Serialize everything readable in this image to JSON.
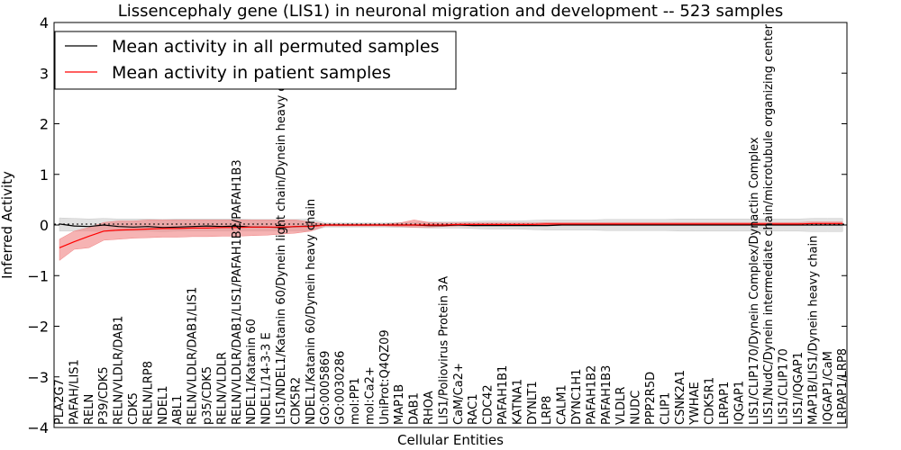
{
  "chart_data": {
    "type": "line",
    "title": "Lissencephaly gene (LIS1) in neuronal migration and development -- 523 samples",
    "xlabel": "Cellular Entities",
    "ylabel": "Inferred Activity",
    "ylim": [
      -4,
      4
    ],
    "yticks": [
      "4",
      "3",
      "2",
      "1",
      "0",
      "−1",
      "−2",
      "−3",
      "−4"
    ],
    "legend_position": "upper-left",
    "categories": [
      "PLA2G7",
      "PAFAH/LIS1",
      "RELN",
      "P39/CDK5",
      "RELN/VLDLR/DAB1",
      "CDK5",
      "RELN/LRP8",
      "NDEL1",
      "ABL1",
      "RELN/VLDLR/DAB1/LIS1",
      "p35/CDK5",
      "RELN/VLDLR",
      "RELN/VLDLR/DAB1/LIS1/PAFAH1B2/PAFAH1B3",
      "NDEL1/Katanin 60",
      "NDEL1/14-3-3 E",
      "LIS1/NDEL1/Katanin 60/Dynein light chain/Dynein heavy chain",
      "CDK5R2",
      "NDEL1/Katanin 60/Dynein heavy chain",
      "GO:0005869",
      "GO:0030286",
      "mol:PP1",
      "mol:Ca2+",
      "UniProt:Q4QZ09",
      "MAP1B",
      "DAB1",
      "RHOA",
      "LIS1/Poliovirus Protein 3A",
      "CaM/Ca2+",
      "RAC1",
      "CDC42",
      "PAFAH1B1",
      "KATNA1",
      "DYNLT1",
      "LRP8",
      "CALM1",
      "DYNC1H1",
      "PAFAH1B2",
      "PAFAH1B3",
      "VLDLR",
      "NUDC",
      "PPP2R5D",
      "CLIP1",
      "CSNK2A1",
      "YWHAE",
      "CDK5R1",
      "LRPAP1",
      "IQGAP1",
      "LIS1/CLIP170/Dynein Complex/Dynactin Complex",
      "LIS1/NudC/Dynein intermediate chain/microtubule organizing center",
      "LIS1/CLIP170",
      "LIS1/IQGAP1",
      "MAP1B/LIS1/Dynein heavy chain",
      "IQGAP1/CaM",
      "LRPAP1/LRP8"
    ],
    "series": [
      {
        "name": "Mean activity in all permuted samples",
        "color": "#000000",
        "band_color": "#c8c8c8",
        "values": [
          0.02,
          -0.02,
          -0.03,
          0.0,
          -0.03,
          -0.04,
          -0.03,
          -0.05,
          -0.04,
          -0.03,
          -0.02,
          -0.03,
          -0.02,
          -0.04,
          -0.04,
          -0.05,
          -0.03,
          -0.02,
          0.0,
          0.0,
          0.0,
          0.0,
          0.0,
          0.0,
          0.0,
          -0.01,
          -0.01,
          0.0,
          -0.01,
          -0.01,
          -0.01,
          -0.01,
          -0.01,
          -0.01,
          0.0,
          0.0,
          0.0,
          0.0,
          0.0,
          0.0,
          0.0,
          0.0,
          0.0,
          0.0,
          0.0,
          0.0,
          0.0,
          0.0,
          0.0,
          0.0,
          0.0,
          0.0,
          0.0,
          0.0
        ],
        "lower": [
          -0.12,
          -0.12,
          -0.12,
          -0.13,
          -0.12,
          -0.12,
          -0.12,
          -0.13,
          -0.12,
          -0.12,
          -0.12,
          -0.12,
          -0.12,
          -0.12,
          -0.12,
          -0.12,
          -0.12,
          -0.12,
          -0.04,
          -0.04,
          -0.04,
          -0.04,
          -0.04,
          -0.05,
          -0.05,
          -0.06,
          -0.06,
          -0.06,
          -0.07,
          -0.08,
          -0.08,
          -0.08,
          -0.09,
          -0.1,
          -0.1,
          -0.1,
          -0.1,
          -0.11,
          -0.11,
          -0.11,
          -0.11,
          -0.11,
          -0.12,
          -0.12,
          -0.12,
          -0.12,
          -0.12,
          -0.12,
          -0.12,
          -0.12,
          -0.12,
          -0.13,
          -0.13,
          -0.13
        ],
        "upper": [
          0.14,
          0.13,
          0.12,
          0.13,
          0.12,
          0.12,
          0.12,
          0.11,
          0.12,
          0.12,
          0.12,
          0.12,
          0.12,
          0.11,
          0.11,
          0.11,
          0.11,
          0.12,
          0.04,
          0.04,
          0.04,
          0.04,
          0.04,
          0.05,
          0.05,
          0.06,
          0.06,
          0.06,
          0.07,
          0.08,
          0.08,
          0.08,
          0.09,
          0.1,
          0.1,
          0.1,
          0.1,
          0.11,
          0.11,
          0.11,
          0.11,
          0.11,
          0.12,
          0.12,
          0.12,
          0.12,
          0.12,
          0.12,
          0.12,
          0.12,
          0.12,
          0.13,
          0.13,
          0.13
        ]
      },
      {
        "name": "Mean activity in patient samples",
        "color": "#ff0000",
        "band_color": "#f08080",
        "values": [
          -0.45,
          -0.33,
          -0.22,
          -0.12,
          -0.1,
          -0.09,
          -0.08,
          -0.07,
          -0.07,
          -0.06,
          -0.06,
          -0.05,
          -0.05,
          -0.04,
          -0.04,
          -0.04,
          -0.03,
          -0.03,
          0.0,
          0.0,
          0.0,
          0.0,
          0.0,
          0.0,
          0.0,
          0.0,
          0.0,
          0.01,
          0.01,
          0.01,
          0.01,
          0.01,
          0.01,
          0.02,
          0.02,
          0.02,
          0.02,
          0.02,
          0.02,
          0.02,
          0.02,
          0.02,
          0.02,
          0.02,
          0.02,
          0.02,
          0.02,
          0.02,
          0.02,
          0.02,
          0.02,
          0.03,
          0.03,
          0.03
        ],
        "lower": [
          -0.7,
          -0.48,
          -0.45,
          -0.3,
          -0.28,
          -0.26,
          -0.25,
          -0.24,
          -0.24,
          -0.23,
          -0.23,
          -0.22,
          -0.22,
          -0.21,
          -0.2,
          -0.18,
          -0.16,
          -0.12,
          -0.02,
          -0.02,
          -0.02,
          -0.02,
          -0.02,
          -0.03,
          -0.04,
          -0.04,
          -0.03,
          -0.02,
          -0.02,
          -0.01,
          -0.01,
          -0.01,
          -0.01,
          0.0,
          0.0,
          0.0,
          0.0,
          0.0,
          0.0,
          0.0,
          0.0,
          0.0,
          0.0,
          0.0,
          0.0,
          0.0,
          0.0,
          0.0,
          0.0,
          0.0,
          0.0,
          0.0,
          0.0,
          0.0
        ],
        "upper": [
          -0.28,
          -0.12,
          -0.05,
          0.05,
          0.08,
          0.08,
          0.1,
          0.1,
          0.1,
          0.1,
          0.1,
          0.1,
          0.1,
          0.1,
          0.1,
          0.1,
          0.1,
          0.06,
          0.02,
          0.02,
          0.02,
          0.02,
          0.02,
          0.04,
          0.1,
          0.05,
          0.04,
          0.04,
          0.04,
          0.04,
          0.04,
          0.04,
          0.04,
          0.05,
          0.05,
          0.05,
          0.05,
          0.05,
          0.05,
          0.05,
          0.05,
          0.05,
          0.05,
          0.05,
          0.05,
          0.05,
          0.05,
          0.05,
          0.05,
          0.05,
          0.05,
          0.06,
          0.06,
          0.06
        ]
      }
    ]
  }
}
